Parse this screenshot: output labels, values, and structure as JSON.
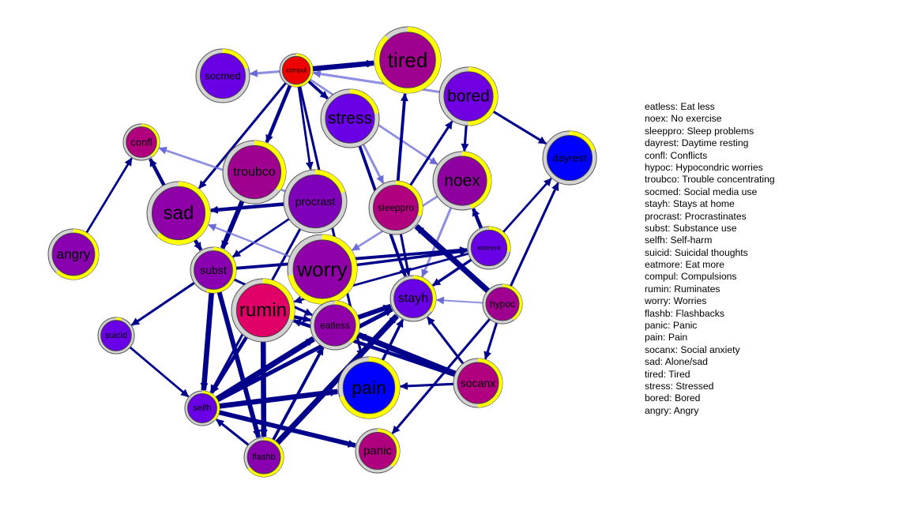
{
  "colors": {
    "edge_strong": "#00008b",
    "edge_weak": "#6a6ad8",
    "ring_fill": "#ffff00",
    "ring_track": "#d3d3d3"
  },
  "nodes": [
    {
      "id": "tired",
      "label": "tired",
      "fill": "#a0008f",
      "ring": 0.88
    },
    {
      "id": "compul",
      "label": "compul",
      "fill": "#ee0000",
      "ring": 0.55
    },
    {
      "id": "socmed",
      "label": "socmed",
      "fill": "#6a00e6",
      "ring": 0.2
    },
    {
      "id": "bored",
      "label": "bored",
      "fill": "#7000e2",
      "ring": 0.5
    },
    {
      "id": "stress",
      "label": "stress",
      "fill": "#6a00e6",
      "ring": 0.22
    },
    {
      "id": "dayrest",
      "label": "dayrest",
      "fill": "#0000ff",
      "ring": 0.2
    },
    {
      "id": "confl",
      "label": "confl",
      "fill": "#b0007e",
      "ring": 0.4
    },
    {
      "id": "troubco",
      "label": "troubco",
      "fill": "#a0008f",
      "ring": 0.35
    },
    {
      "id": "noex",
      "label": "noex",
      "fill": "#8e00a0",
      "ring": 0.45
    },
    {
      "id": "procrast",
      "label": "procrast",
      "fill": "#7e00b8",
      "ring": 0.2
    },
    {
      "id": "sleeppro",
      "label": "sleeppro",
      "fill": "#b00080",
      "ring": 0.3
    },
    {
      "id": "sad",
      "label": "sad",
      "fill": "#9000a8",
      "ring": 0.62
    },
    {
      "id": "angry",
      "label": "angry",
      "fill": "#8800b0",
      "ring": 0.62
    },
    {
      "id": "eatmore",
      "label": "eatmore",
      "fill": "#6a00e6",
      "ring": 0.28
    },
    {
      "id": "worry",
      "label": "worry",
      "fill": "#9000a8",
      "ring": 0.72
    },
    {
      "id": "subst",
      "label": "subst",
      "fill": "#8800b0",
      "ring": 0.55
    },
    {
      "id": "rumin",
      "label": "rumin",
      "fill": "#e00068",
      "ring": 0.3
    },
    {
      "id": "stayh",
      "label": "stayh",
      "fill": "#6a00e6",
      "ring": 0.35
    },
    {
      "id": "hypoc",
      "label": "hypoc",
      "fill": "#a0008f",
      "ring": 0.4
    },
    {
      "id": "eatless",
      "label": "eatless",
      "fill": "#9000a8",
      "ring": 0.38
    },
    {
      "id": "suicid",
      "label": "suicid",
      "fill": "#6a00e6",
      "ring": 0.05
    },
    {
      "id": "pain",
      "label": "pain",
      "fill": "#0000ff",
      "ring": 0.7
    },
    {
      "id": "socanx",
      "label": "socanx",
      "fill": "#b00080",
      "ring": 0.5
    },
    {
      "id": "selfh",
      "label": "selfh",
      "fill": "#6a00e6",
      "ring": 0.38
    },
    {
      "id": "panic",
      "label": "panic",
      "fill": "#b00080",
      "ring": 0.38
    },
    {
      "id": "flashb",
      "label": "flashb",
      "fill": "#8800b0",
      "ring": 0.65
    }
  ],
  "edges": [
    {
      "from": "compul",
      "to": "tired",
      "weight": 0.8,
      "color": "strong"
    },
    {
      "from": "compul",
      "to": "socmed",
      "weight": 0.3,
      "color": "weak"
    },
    {
      "from": "compul",
      "to": "troubco",
      "weight": 0.5,
      "color": "strong"
    },
    {
      "from": "compul",
      "to": "stress",
      "weight": 0.4,
      "color": "strong"
    },
    {
      "from": "compul",
      "to": "sad",
      "weight": 0.3,
      "color": "strong"
    },
    {
      "from": "compul",
      "to": "procrast",
      "weight": 0.25,
      "color": "strong"
    },
    {
      "from": "compul",
      "to": "noex",
      "weight": 0.25,
      "color": "weak"
    },
    {
      "from": "compul",
      "to": "pain",
      "weight": 0.3,
      "color": "strong"
    },
    {
      "from": "bored",
      "to": "compul",
      "weight": 0.3,
      "color": "weak"
    },
    {
      "from": "bored",
      "to": "dayrest",
      "weight": 0.3,
      "color": "strong"
    },
    {
      "from": "bored",
      "to": "noex",
      "weight": 0.3,
      "color": "strong"
    },
    {
      "from": "sleeppro",
      "to": "tired",
      "weight": 0.4,
      "color": "strong"
    },
    {
      "from": "sleeppro",
      "to": "bored",
      "weight": 0.3,
      "color": "strong"
    },
    {
      "from": "sleeppro",
      "to": "stayh",
      "weight": 0.3,
      "color": "strong"
    },
    {
      "from": "stress",
      "to": "stayh",
      "weight": 0.4,
      "color": "strong"
    },
    {
      "from": "stress",
      "to": "sleeppro",
      "weight": 0.3,
      "color": "weak"
    },
    {
      "from": "noex",
      "to": "stayh",
      "weight": 0.3,
      "color": "weak"
    },
    {
      "from": "noex",
      "to": "worry",
      "weight": 0.25,
      "color": "weak"
    },
    {
      "from": "procrast",
      "to": "sad",
      "weight": 0.5,
      "color": "strong"
    },
    {
      "from": "procrast",
      "to": "subst",
      "weight": 0.25,
      "color": "strong"
    },
    {
      "from": "procrast",
      "to": "selfh",
      "weight": 0.3,
      "color": "strong"
    },
    {
      "from": "procrast",
      "to": "confl",
      "weight": 0.25,
      "color": "weak"
    },
    {
      "from": "troubco",
      "to": "subst",
      "weight": 0.7,
      "color": "strong"
    },
    {
      "from": "sad",
      "to": "confl",
      "weight": 0.5,
      "color": "strong"
    },
    {
      "from": "sad",
      "to": "subst",
      "weight": 0.5,
      "color": "strong"
    },
    {
      "from": "angry",
      "to": "confl",
      "weight": 0.25,
      "color": "strong"
    },
    {
      "from": "worry",
      "to": "sad",
      "weight": 0.2,
      "color": "weak"
    },
    {
      "from": "subst",
      "to": "eatmore",
      "weight": 0.4,
      "color": "strong"
    },
    {
      "from": "subst",
      "to": "suicid",
      "weight": 0.3,
      "color": "strong"
    },
    {
      "from": "subst",
      "to": "selfh",
      "weight": 0.8,
      "color": "strong"
    },
    {
      "from": "subst",
      "to": "flashb",
      "weight": 0.7,
      "color": "strong"
    },
    {
      "from": "subst",
      "to": "eatless",
      "weight": 0.3,
      "color": "strong"
    },
    {
      "from": "eatmore",
      "to": "noex",
      "weight": 0.5,
      "color": "strong"
    },
    {
      "from": "eatmore",
      "to": "dayrest",
      "weight": 0.25,
      "color": "strong"
    },
    {
      "from": "eatmore",
      "to": "stayh",
      "weight": 0.35,
      "color": "strong"
    },
    {
      "from": "eatmore",
      "to": "rumin",
      "weight": 0.25,
      "color": "strong"
    },
    {
      "from": "hypoc",
      "to": "sleeppro",
      "weight": 0.9,
      "color": "strong"
    },
    {
      "from": "hypoc",
      "to": "dayrest",
      "weight": 0.3,
      "color": "strong"
    },
    {
      "from": "hypoc",
      "to": "socanx",
      "weight": 0.3,
      "color": "strong"
    },
    {
      "from": "hypoc",
      "to": "panic",
      "weight": 0.3,
      "color": "strong"
    },
    {
      "from": "hypoc",
      "to": "stayh",
      "weight": 0.15,
      "color": "weak"
    },
    {
      "from": "rumin",
      "to": "eatless",
      "weight": 0.45,
      "color": "strong"
    },
    {
      "from": "rumin",
      "to": "selfh",
      "weight": 0.5,
      "color": "strong"
    },
    {
      "from": "rumin",
      "to": "flashb",
      "weight": 0.8,
      "color": "strong"
    },
    {
      "from": "eatless",
      "to": "stayh",
      "weight": 0.7,
      "color": "strong"
    },
    {
      "from": "socanx",
      "to": "eatless",
      "weight": 0.9,
      "color": "strong"
    },
    {
      "from": "socanx",
      "to": "rumin",
      "weight": 0.5,
      "color": "strong"
    },
    {
      "from": "socanx",
      "to": "stayh",
      "weight": 0.3,
      "color": "strong"
    },
    {
      "from": "socanx",
      "to": "pain",
      "weight": 0.3,
      "color": "strong"
    },
    {
      "from": "selfh",
      "to": "eatless",
      "weight": 0.9,
      "color": "strong"
    },
    {
      "from": "selfh",
      "to": "pain",
      "weight": 0.8,
      "color": "strong"
    },
    {
      "from": "selfh",
      "to": "panic",
      "weight": 0.7,
      "color": "strong"
    },
    {
      "from": "selfh",
      "to": "stayh",
      "weight": 0.6,
      "color": "strong"
    },
    {
      "from": "suicid",
      "to": "selfh",
      "weight": 0.25,
      "color": "strong"
    },
    {
      "from": "flashb",
      "to": "stayh",
      "weight": 0.9,
      "color": "strong"
    },
    {
      "from": "flashb",
      "to": "eatless",
      "weight": 0.4,
      "color": "strong"
    },
    {
      "from": "flashb",
      "to": "selfh",
      "weight": 0.3,
      "color": "strong"
    },
    {
      "from": "pain",
      "to": "stayh",
      "weight": 0.35,
      "color": "strong"
    },
    {
      "from": "worry",
      "to": "eatmore",
      "weight": 0.35,
      "color": "strong"
    }
  ],
  "legend": [
    "eatless: Eat less",
    "noex: No exercise",
    "sleeppro: Sleep problems",
    "dayrest: Daytime resting",
    "confl: Conflicts",
    "hypoc: Hypocondric worries",
    "troubco: Trouble concentrating",
    "socmed: Social media use",
    "stayh: Stays at home",
    "procrast: Procrastinates",
    "subst: Substance use",
    "selfh: Self-harm",
    "suicid: Suicidal thoughts",
    "eatmore: Eat more",
    "compul: Compulsions",
    "rumin: Ruminates",
    "worry: Worries",
    "flashb: Flashbacks",
    "panic: Panic",
    "pain: Pain",
    "socanx: Social anxiety",
    "sad: Alone/sad",
    "tired: Tired",
    "stress: Stressed",
    "bored: Bored",
    "angry: Angry"
  ]
}
